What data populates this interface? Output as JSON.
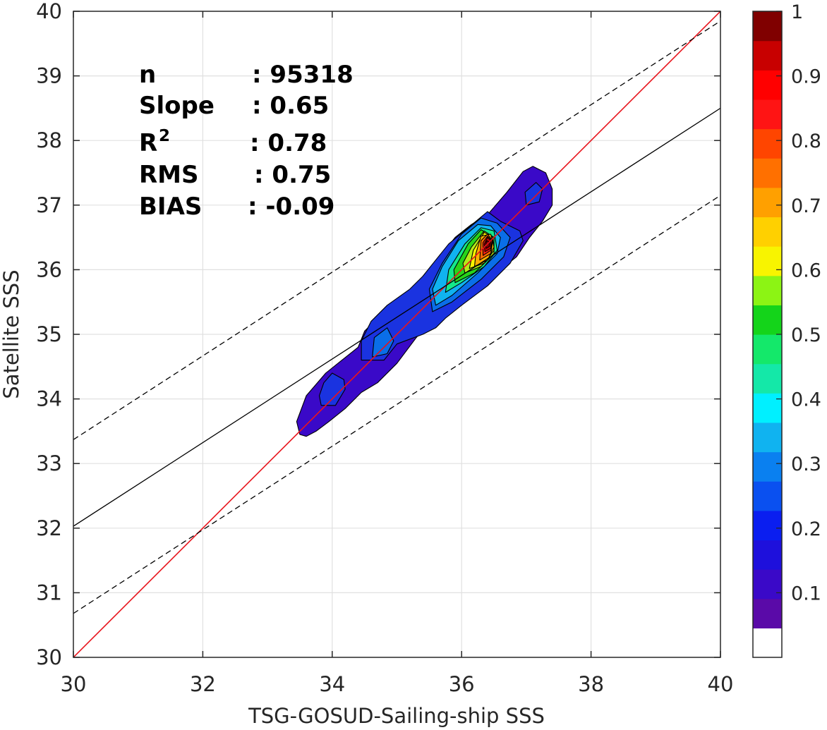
{
  "chart_data": {
    "type": "contour",
    "xlabel": "TSG-GOSUD-Sailing-ship SSS",
    "ylabel": "Satellite SSS",
    "xlim": [
      30,
      40
    ],
    "ylim": [
      30,
      40
    ],
    "x_ticks": [
      "30",
      "32",
      "34",
      "36",
      "38",
      "40"
    ],
    "y_ticks": [
      "30",
      "31",
      "32",
      "33",
      "34",
      "35",
      "36",
      "37",
      "38",
      "39",
      "40"
    ],
    "grid": true,
    "stats": [
      {
        "label": "n",
        "value": ": 95318"
      },
      {
        "label": "Slope",
        "value": ": 0.65"
      },
      {
        "label": "R",
        "sup": "2",
        "value": ": 0.78"
      },
      {
        "label": "RMS",
        "value": ": 0.75"
      },
      {
        "label": "BIAS",
        "value": ": -0.09"
      }
    ],
    "lines": [
      {
        "kind": "identity",
        "color": "#e8141c",
        "dash": "solid",
        "points": [
          [
            30,
            30
          ],
          [
            40,
            40
          ]
        ]
      },
      {
        "kind": "regression",
        "color": "#000000",
        "dash": "solid",
        "points": [
          [
            30,
            32.03
          ],
          [
            40,
            38.5
          ]
        ]
      },
      {
        "kind": "upper-bound",
        "color": "#000000",
        "dash": "dashed",
        "points": [
          [
            30,
            33.37
          ],
          [
            40,
            39.85
          ]
        ]
      },
      {
        "kind": "lower-bound",
        "color": "#000000",
        "dash": "dashed",
        "points": [
          [
            30,
            30.68
          ],
          [
            40,
            37.15
          ]
        ]
      }
    ],
    "density_contours": {
      "center": [
        36.42,
        36.4
      ],
      "levels": [
        {
          "level": 0.05,
          "color": "#3a09c8",
          "polygon": [
            [
              33.5,
              33.45
            ],
            [
              33.6,
              33.42
            ],
            [
              33.75,
              33.5
            ],
            [
              33.95,
              33.65
            ],
            [
              34.2,
              33.85
            ],
            [
              34.45,
              34.1
            ],
            [
              34.7,
              34.25
            ],
            [
              35.0,
              34.55
            ],
            [
              35.3,
              34.95
            ],
            [
              35.6,
              35.3
            ],
            [
              35.9,
              35.55
            ],
            [
              36.25,
              35.75
            ],
            [
              36.6,
              36.0
            ],
            [
              36.85,
              36.2
            ],
            [
              37.05,
              36.5
            ],
            [
              37.25,
              36.75
            ],
            [
              37.4,
              37.0
            ],
            [
              37.4,
              37.25
            ],
            [
              37.3,
              37.5
            ],
            [
              37.1,
              37.6
            ],
            [
              36.95,
              37.52
            ],
            [
              36.7,
              37.2
            ],
            [
              36.4,
              36.85
            ],
            [
              36.15,
              36.7
            ],
            [
              35.9,
              36.5
            ],
            [
              35.7,
              36.25
            ],
            [
              35.5,
              35.95
            ],
            [
              35.1,
              35.45
            ],
            [
              34.8,
              35.35
            ],
            [
              34.5,
              35.05
            ],
            [
              34.4,
              34.8
            ],
            [
              34.15,
              34.6
            ],
            [
              33.9,
              34.4
            ],
            [
              33.6,
              34.05
            ],
            [
              33.45,
              33.65
            ]
          ]
        },
        {
          "level": 0.15,
          "color": "#1a33e0",
          "polygon": [
            [
              33.83,
              33.9
            ],
            [
              34.05,
              33.9
            ],
            [
              34.2,
              34.15
            ],
            [
              34.18,
              34.3
            ],
            [
              34.0,
              34.4
            ],
            [
              33.87,
              34.25
            ],
            [
              33.8,
              34.05
            ]
          ]
        },
        {
          "level": 0.15,
          "color": "#1a33e0",
          "polygon": [
            [
              34.45,
              34.6
            ],
            [
              34.8,
              34.6
            ],
            [
              35.0,
              34.85
            ],
            [
              35.4,
              35.0
            ],
            [
              35.6,
              35.1
            ],
            [
              35.75,
              35.25
            ],
            [
              36.0,
              35.45
            ],
            [
              36.4,
              35.75
            ],
            [
              36.75,
              36.1
            ],
            [
              36.95,
              36.45
            ],
            [
              36.9,
              36.6
            ],
            [
              36.6,
              36.75
            ],
            [
              36.4,
              36.9
            ],
            [
              36.1,
              36.65
            ],
            [
              35.8,
              36.4
            ],
            [
              35.6,
              36.15
            ],
            [
              35.4,
              35.9
            ],
            [
              35.2,
              35.7
            ],
            [
              34.85,
              35.45
            ],
            [
              34.6,
              35.2
            ],
            [
              34.45,
              34.9
            ]
          ]
        },
        {
          "level": 0.15,
          "color": "#1a33e0",
          "polygon": [
            [
              37.0,
              37.0
            ],
            [
              37.2,
              37.05
            ],
            [
              37.25,
              37.25
            ],
            [
              37.15,
              37.35
            ],
            [
              36.98,
              37.2
            ]
          ]
        },
        {
          "level": 0.25,
          "color": "#0a6ee8",
          "polygon": [
            [
              34.62,
              34.65
            ],
            [
              34.85,
              34.7
            ],
            [
              34.95,
              34.9
            ],
            [
              34.85,
              35.1
            ],
            [
              34.65,
              34.95
            ]
          ]
        },
        {
          "level": 0.25,
          "color": "#0a6ee8",
          "polygon": [
            [
              35.55,
              35.35
            ],
            [
              35.85,
              35.5
            ],
            [
              36.3,
              35.85
            ],
            [
              36.65,
              36.2
            ],
            [
              36.75,
              36.5
            ],
            [
              36.55,
              36.72
            ],
            [
              36.3,
              36.8
            ],
            [
              36.0,
              36.55
            ],
            [
              35.7,
              36.1
            ],
            [
              35.5,
              35.7
            ]
          ]
        },
        {
          "level": 0.3,
          "color": "#10b3f0",
          "polygon": [
            [
              35.6,
              35.45
            ],
            [
              35.85,
              35.6
            ],
            [
              36.25,
              35.95
            ],
            [
              36.55,
              36.25
            ],
            [
              36.6,
              36.5
            ],
            [
              36.45,
              36.68
            ],
            [
              36.25,
              36.7
            ],
            [
              35.95,
              36.45
            ],
            [
              35.7,
              36.05
            ],
            [
              35.55,
              35.7
            ]
          ]
        },
        {
          "level": 0.4,
          "color": "#14e88a",
          "polygon": [
            [
              35.75,
              35.65
            ],
            [
              36.0,
              35.8
            ],
            [
              36.35,
              36.05
            ],
            [
              36.55,
              36.3
            ],
            [
              36.5,
              36.6
            ],
            [
              36.3,
              36.65
            ],
            [
              36.05,
              36.4
            ],
            [
              35.8,
              36.0
            ]
          ]
        },
        {
          "level": 0.5,
          "color": "#28d41a",
          "polygon": [
            [
              35.9,
              35.8
            ],
            [
              36.2,
              35.95
            ],
            [
              36.45,
              36.2
            ],
            [
              36.5,
              36.5
            ],
            [
              36.3,
              36.62
            ],
            [
              36.1,
              36.4
            ],
            [
              35.88,
              36.0
            ]
          ]
        },
        {
          "level": 0.55,
          "color": "#b4ec18",
          "polygon": [
            [
              36.05,
              35.95
            ],
            [
              36.3,
              36.05
            ],
            [
              36.5,
              36.25
            ],
            [
              36.5,
              36.5
            ],
            [
              36.35,
              36.6
            ],
            [
              36.15,
              36.35
            ],
            [
              36.02,
              36.1
            ]
          ]
        },
        {
          "level": 0.6,
          "color": "#f8f400",
          "polygon": [
            [
              36.12,
              36.02
            ],
            [
              36.35,
              36.1
            ],
            [
              36.5,
              36.3
            ],
            [
              36.48,
              36.5
            ],
            [
              36.35,
              36.58
            ],
            [
              36.18,
              36.3
            ]
          ]
        },
        {
          "level": 0.7,
          "color": "#ffb000",
          "polygon": [
            [
              36.2,
              36.05
            ],
            [
              36.4,
              36.15
            ],
            [
              36.5,
              36.35
            ],
            [
              36.45,
              36.55
            ],
            [
              36.3,
              36.52
            ],
            [
              36.22,
              36.25
            ]
          ]
        },
        {
          "level": 0.75,
          "color": "#ff6a00",
          "polygon": [
            [
              36.28,
              36.15
            ],
            [
              36.45,
              36.25
            ],
            [
              36.48,
              36.45
            ],
            [
              36.4,
              36.55
            ],
            [
              36.3,
              36.45
            ]
          ]
        },
        {
          "level": 0.8,
          "color": "#ff2010",
          "polygon": [
            [
              36.33,
              36.22
            ],
            [
              36.45,
              36.3
            ],
            [
              36.47,
              36.45
            ],
            [
              36.4,
              36.52
            ],
            [
              36.33,
              36.42
            ]
          ]
        },
        {
          "level": 0.9,
          "color": "#c80000",
          "polygon": [
            [
              36.36,
              36.28
            ],
            [
              36.45,
              36.33
            ],
            [
              36.45,
              36.45
            ],
            [
              36.4,
              36.5
            ],
            [
              36.35,
              36.4
            ]
          ]
        },
        {
          "level": 1.0,
          "color": "#800000",
          "polygon": [
            [
              36.38,
              36.33
            ],
            [
              36.43,
              36.36
            ],
            [
              36.43,
              36.43
            ],
            [
              36.39,
              36.45
            ],
            [
              36.37,
              36.39
            ]
          ]
        }
      ]
    },
    "colorbar": {
      "ticks": [
        "0.1",
        "0.2",
        "0.3",
        "0.4",
        "0.5",
        "0.6",
        "0.7",
        "0.8",
        "0.9",
        "1"
      ],
      "tick_values": [
        0.1,
        0.2,
        0.3,
        0.4,
        0.5,
        0.6,
        0.7,
        0.8,
        0.9,
        1.0
      ],
      "range": [
        0,
        1
      ],
      "colors": [
        "#ffffff",
        "#5a0aa8",
        "#3a09c8",
        "#1e10dc",
        "#0a1ef0",
        "#0a50f0",
        "#0a80f0",
        "#10b3f0",
        "#00f0ff",
        "#14e8a8",
        "#14e86a",
        "#14d41a",
        "#8cf414",
        "#f8f400",
        "#ffd000",
        "#ffa000",
        "#ff7000",
        "#ff4500",
        "#ff1414",
        "#ff0000",
        "#c80000",
        "#800000"
      ]
    }
  }
}
